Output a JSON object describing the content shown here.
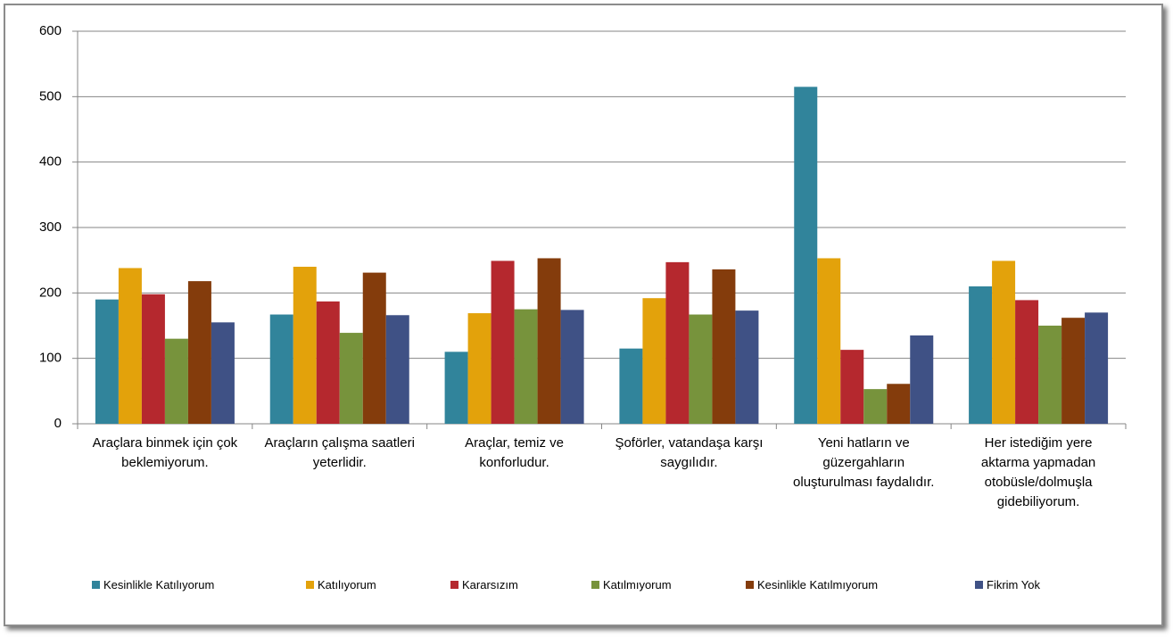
{
  "chart_data": {
    "type": "bar",
    "categories": [
      "Araçlara binmek için çok beklemiyorum.",
      "Araçların çalışma saatleri yeterlidir.",
      "Araçlar, temiz ve konforludur.",
      "Şoförler, vatandaşa karşı saygılıdır.",
      "Yeni hatların ve güzergahların oluşturulması faydalıdır.",
      "Her istediğim yere aktarma yapmadan otobüsle/dolmuşla gidebiliyorum."
    ],
    "series": [
      {
        "name": "Kesinlikle Katılıyorum",
        "color": "#31849b",
        "values": [
          190,
          167,
          110,
          115,
          515,
          210
        ]
      },
      {
        "name": "Katılıyorum",
        "color": "#e3a20b",
        "values": [
          238,
          240,
          169,
          192,
          253,
          249
        ]
      },
      {
        "name": "Kararsızım",
        "color": "#b5282e",
        "values": [
          198,
          187,
          249,
          247,
          113,
          189
        ]
      },
      {
        "name": "Katılmıyorum",
        "color": "#77933c",
        "values": [
          130,
          139,
          175,
          167,
          53,
          150
        ]
      },
      {
        "name": "Kesinlikle Katılmıyorum",
        "color": "#843c0c",
        "values": [
          218,
          231,
          253,
          236,
          61,
          162
        ]
      },
      {
        "name": "Fikrim Yok",
        "color": "#3f5185",
        "values": [
          155,
          166,
          174,
          173,
          135,
          170
        ]
      }
    ],
    "ylim": [
      0,
      600
    ],
    "yticks": [
      0,
      100,
      200,
      300,
      400,
      500,
      600
    ],
    "grid": true,
    "legend": "bottom"
  }
}
